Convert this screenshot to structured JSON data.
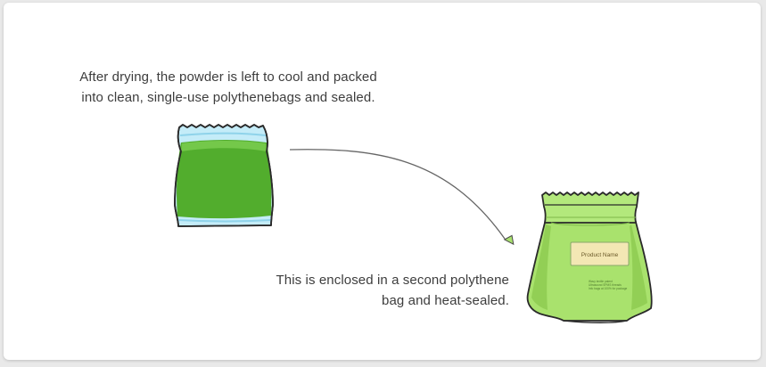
{
  "captions": {
    "top": {
      "line1": "After drying, the powder is left to cool and packed",
      "line2": "into clean, single-use polythenebags and sealed."
    },
    "bottom": {
      "line1": "This is enclosed in a second polythene",
      "line2": "bag and heat-sealed."
    }
  },
  "outer_bag": {
    "label_title": "Product Name",
    "label_lines": [
      "Wavy textile patent",
      "Ultrasound SPMS threads",
      "Info bags at 100% for package"
    ]
  },
  "colors": {
    "inner_bag_fill": "#52ad2d",
    "inner_bag_plastic": "#bfe9f7",
    "outer_bag_fill": "#a9e26d",
    "label_fill": "#f3e7b4",
    "arrow": "#666666"
  },
  "icons": [
    "inner-polythene-bag-icon",
    "outer-polythene-bag-icon",
    "process-arrow-icon"
  ]
}
